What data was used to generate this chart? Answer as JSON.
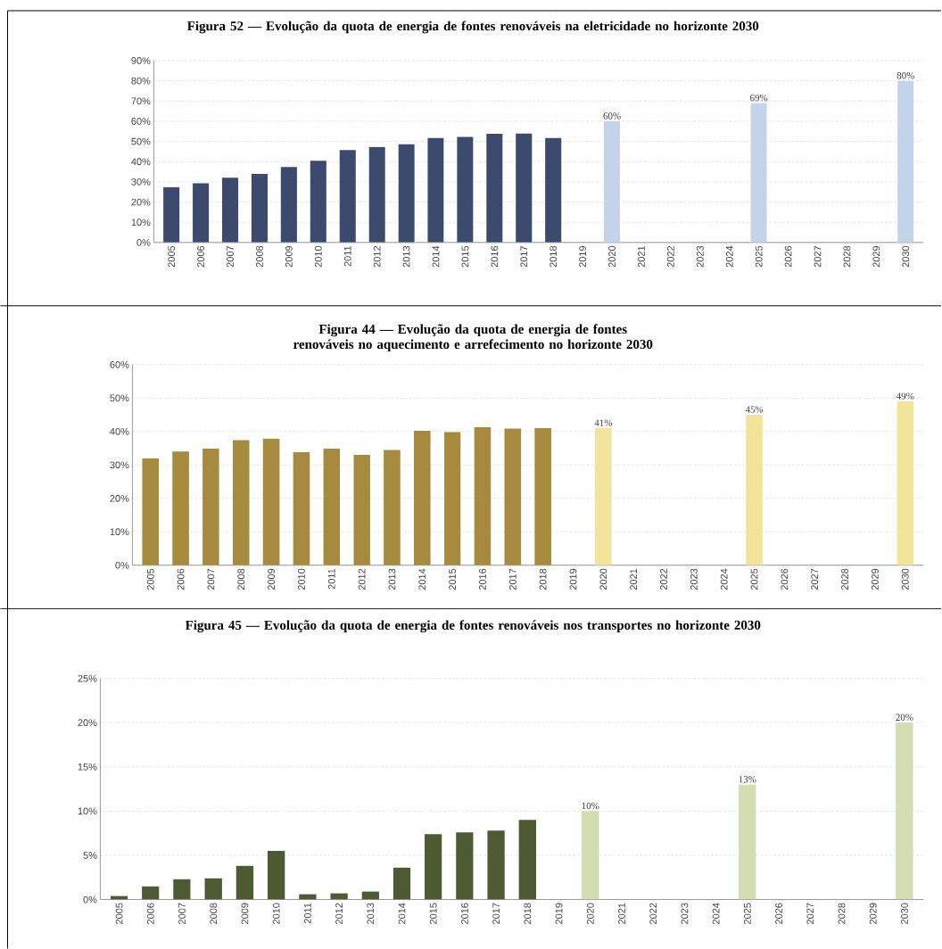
{
  "chart_data": [
    {
      "type": "bar",
      "title": "Figura 52 — Evolução da quota de energia de fontes renováveis na eletricidade no horizonte 2030",
      "categories": [
        "2005",
        "2006",
        "2007",
        "2008",
        "2009",
        "2010",
        "2011",
        "2012",
        "2013",
        "2014",
        "2015",
        "2016",
        "2017",
        "2018",
        "2019",
        "2020",
        "2021",
        "2022",
        "2023",
        "2024",
        "2025",
        "2026",
        "2027",
        "2028",
        "2029",
        "2030"
      ],
      "values": [
        27.4,
        29.3,
        32.1,
        33.9,
        37.4,
        40.4,
        45.7,
        47.3,
        48.7,
        51.8,
        52.3,
        53.8,
        54.0,
        51.8,
        null,
        60,
        null,
        null,
        null,
        null,
        69,
        null,
        null,
        null,
        null,
        80
      ],
      "colors": [
        "#3c4a6e",
        "#3c4a6e",
        "#3c4a6e",
        "#3c4a6e",
        "#3c4a6e",
        "#3c4a6e",
        "#3c4a6e",
        "#3c4a6e",
        "#3c4a6e",
        "#3c4a6e",
        "#3c4a6e",
        "#3c4a6e",
        "#3c4a6e",
        "#3c4a6e",
        "#c5d3ea",
        "#c5d3ea",
        "#c5d3ea",
        "#c5d3ea",
        "#c5d3ea",
        "#c5d3ea",
        "#c5d3ea",
        "#c5d3ea",
        "#c5d3ea",
        "#c5d3ea",
        "#c5d3ea",
        "#c5d3ea"
      ],
      "value_labels": [
        null,
        null,
        null,
        null,
        null,
        null,
        null,
        null,
        null,
        null,
        null,
        null,
        null,
        null,
        null,
        "60%",
        null,
        null,
        null,
        null,
        "69%",
        null,
        null,
        null,
        null,
        "80%"
      ],
      "ylim": [
        0,
        90
      ],
      "yticks": [
        {
          "value": 0,
          "label": "0%"
        },
        {
          "value": 10,
          "label": "10%"
        },
        {
          "value": 20,
          "label": "20%"
        },
        {
          "value": 30,
          "label": "30%"
        },
        {
          "value": 40,
          "label": "40%"
        },
        {
          "value": 50,
          "label": "50%"
        },
        {
          "value": 60,
          "label": "60%"
        },
        {
          "value": 70,
          "label": "70%"
        },
        {
          "value": 80,
          "label": "80%"
        },
        {
          "value": 90,
          "label": "90%"
        }
      ],
      "grid": "y"
    },
    {
      "type": "bar",
      "title": "Figura 44 — Evolução da quota de energia de fontes renováveis no aquecimento e arrefecimento no horizonte 2030",
      "categories": [
        "2005",
        "2006",
        "2007",
        "2008",
        "2009",
        "2010",
        "2011",
        "2012",
        "2013",
        "2014",
        "2015",
        "2016",
        "2017",
        "2018",
        "2019",
        "2020",
        "2021",
        "2022",
        "2023",
        "2024",
        "2025",
        "2026",
        "2027",
        "2028",
        "2029",
        "2030"
      ],
      "values": [
        32.0,
        34.0,
        34.9,
        37.4,
        37.9,
        33.8,
        34.9,
        33.0,
        34.5,
        40.2,
        39.8,
        41.3,
        40.9,
        41.0,
        null,
        41,
        null,
        null,
        null,
        null,
        45,
        null,
        null,
        null,
        null,
        49
      ],
      "colors": [
        "#a68a3e",
        "#a68a3e",
        "#a68a3e",
        "#a68a3e",
        "#a68a3e",
        "#a68a3e",
        "#a68a3e",
        "#a68a3e",
        "#a68a3e",
        "#a68a3e",
        "#a68a3e",
        "#a68a3e",
        "#a68a3e",
        "#a68a3e",
        "#f3e49c",
        "#f3e49c",
        "#f3e49c",
        "#f3e49c",
        "#f3e49c",
        "#f3e49c",
        "#f3e49c",
        "#f3e49c",
        "#f3e49c",
        "#f3e49c",
        "#f3e49c",
        "#f3e49c"
      ],
      "value_labels": [
        null,
        null,
        null,
        null,
        null,
        null,
        null,
        null,
        null,
        null,
        null,
        null,
        null,
        null,
        null,
        "41%",
        null,
        null,
        null,
        null,
        "45%",
        null,
        null,
        null,
        null,
        "49%"
      ],
      "ylim": [
        0,
        60
      ],
      "yticks": [
        {
          "value": 0,
          "label": "0%"
        },
        {
          "value": 10,
          "label": "10%"
        },
        {
          "value": 20,
          "label": "20%"
        },
        {
          "value": 30,
          "label": "30%"
        },
        {
          "value": 40,
          "label": "40%"
        },
        {
          "value": 50,
          "label": "50%"
        },
        {
          "value": 60,
          "label": "60%"
        }
      ],
      "grid": "y"
    },
    {
      "type": "bar",
      "title": "Figura 45 — Evolução da quota de energia de fontes renováveis nos transportes no horizonte 2030",
      "categories": [
        "2005",
        "2006",
        "2007",
        "2008",
        "2009",
        "2010",
        "2011",
        "2012",
        "2013",
        "2014",
        "2015",
        "2016",
        "2017",
        "2018",
        "2019",
        "2020",
        "2021",
        "2022",
        "2023",
        "2024",
        "2025",
        "2026",
        "2027",
        "2028",
        "2029",
        "2030"
      ],
      "values": [
        0.4,
        1.5,
        2.3,
        2.4,
        3.8,
        5.5,
        0.6,
        0.7,
        0.9,
        3.6,
        7.4,
        7.6,
        7.8,
        9.0,
        null,
        10,
        null,
        null,
        null,
        null,
        13,
        null,
        null,
        null,
        null,
        20
      ],
      "colors": [
        "#4d5a32",
        "#4d5a32",
        "#4d5a32",
        "#4d5a32",
        "#4d5a32",
        "#4d5a32",
        "#4d5a32",
        "#4d5a32",
        "#4d5a32",
        "#4d5a32",
        "#4d5a32",
        "#4d5a32",
        "#4d5a32",
        "#4d5a32",
        "#d3deb0",
        "#d3deb0",
        "#d3deb0",
        "#d3deb0",
        "#d3deb0",
        "#d3deb0",
        "#d3deb0",
        "#d3deb0",
        "#d3deb0",
        "#d3deb0",
        "#d3deb0",
        "#d3deb0"
      ],
      "value_labels": [
        null,
        null,
        null,
        null,
        null,
        null,
        null,
        null,
        null,
        null,
        null,
        null,
        null,
        null,
        null,
        "10%",
        null,
        null,
        null,
        null,
        "13%",
        null,
        null,
        null,
        null,
        "20%"
      ],
      "ylim": [
        0,
        25
      ],
      "yticks": [
        {
          "value": 0,
          "label": "0%"
        },
        {
          "value": 5,
          "label": "5%"
        },
        {
          "value": 10,
          "label": "10%"
        },
        {
          "value": 15,
          "label": "15%"
        },
        {
          "value": 20,
          "label": "20%"
        },
        {
          "value": 25,
          "label": "25%"
        }
      ],
      "grid": "y"
    }
  ]
}
